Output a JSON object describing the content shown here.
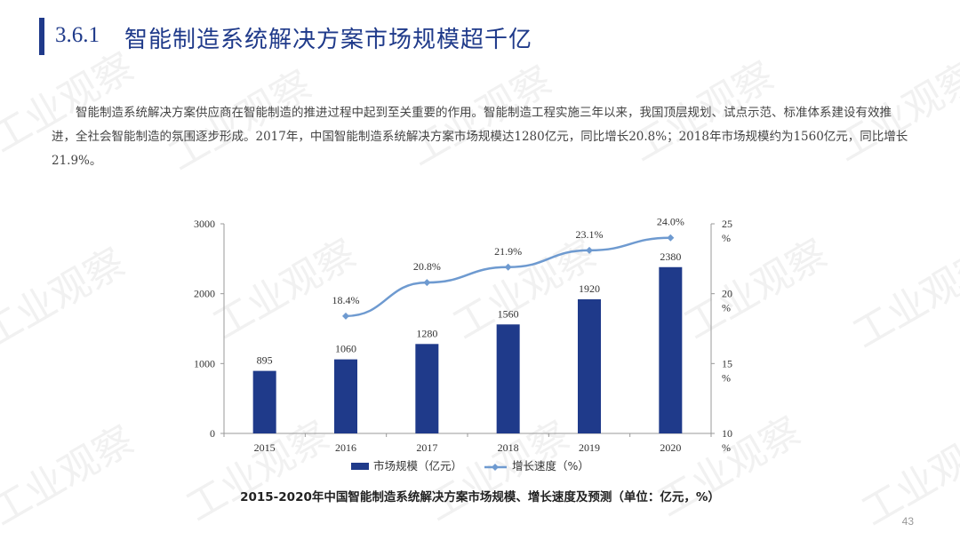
{
  "section": {
    "number": "3.6.1",
    "title": "智能制造系统解决方案市场规模超千亿"
  },
  "paragraph": "智能制造系统解决方案供应商在智能制造的推进过程中起到至关重要的作用。智能制造工程实施三年以来，我国顶层规划、试点示范、标准体系建设有效推进，全社会智能制造的氛围逐步形成。2017年，中国智能制造系统解决方案市场规模达1280亿元，同比增长20.8%；2018年市场规模约为1560亿元，同比增长21.9%。",
  "watermark_text": "工业观察",
  "colors": {
    "accent": "#1f3a8a",
    "bar": "#1f3a8a",
    "line": "#6e9ad0"
  },
  "chart_data": {
    "type": "bar",
    "title": "2015-2020年中国智能制造系统解决方案市场规模、增长速度及预测（单位：亿元，%）",
    "categories": [
      "2015",
      "2016",
      "2017",
      "2018",
      "2019",
      "2020"
    ],
    "series": [
      {
        "name": "市场规模（亿元）",
        "type": "bar",
        "axis": "left",
        "values": [
          895,
          1060,
          1280,
          1560,
          1920,
          2380
        ],
        "labels": [
          "895",
          "1060",
          "1280",
          "1560",
          "1920",
          "2380"
        ]
      },
      {
        "name": "增长速度（%）",
        "type": "line",
        "axis": "right",
        "values": [
          null,
          18.4,
          20.8,
          21.9,
          23.1,
          24.0
        ],
        "labels": [
          "",
          "18.4%",
          "20.8%",
          "21.9%",
          "23.1%",
          "24.0%"
        ]
      }
    ],
    "ylim_left": [
      0,
      3000
    ],
    "yticks_left": [
      0,
      1000,
      2000,
      3000
    ],
    "ylim_right": [
      10,
      25
    ],
    "yticks_right": [
      10,
      15,
      20,
      25
    ],
    "right_tick_unit": "%",
    "legend_placement": "bottom",
    "grid": false
  },
  "page_number": "43"
}
